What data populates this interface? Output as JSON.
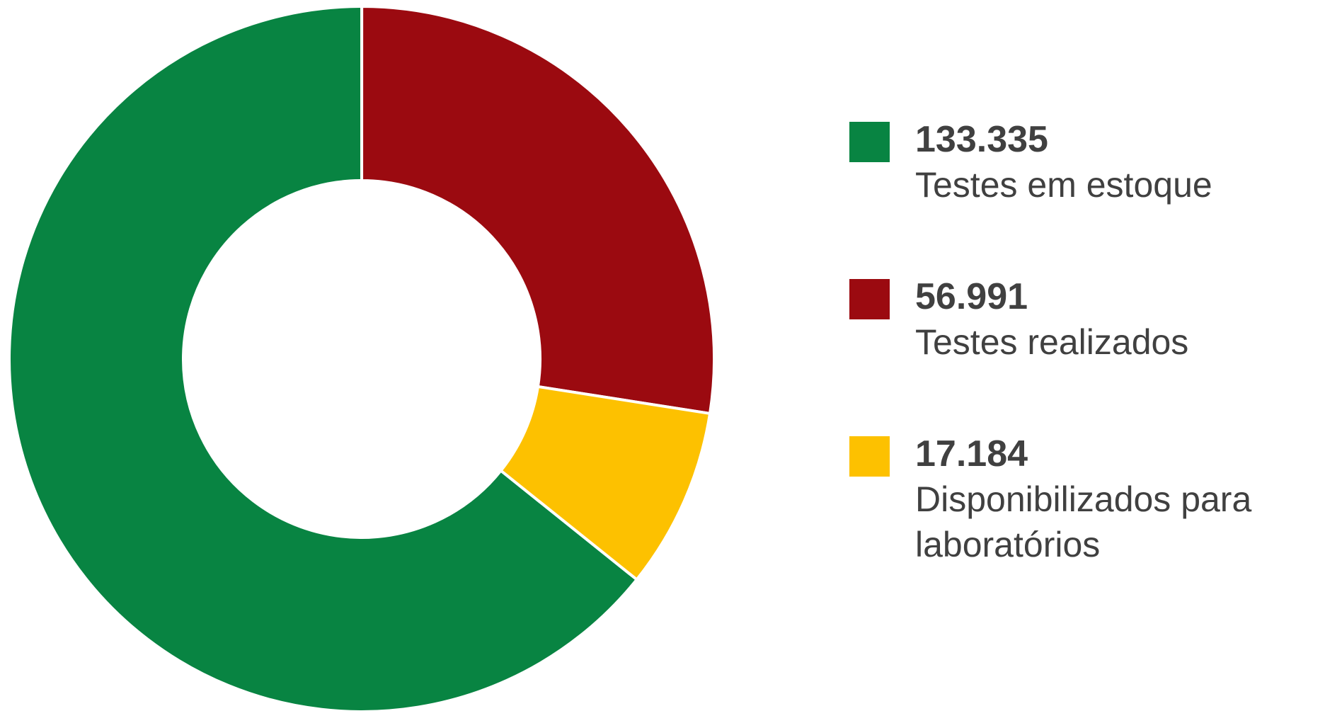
{
  "chart_data": {
    "type": "donut",
    "categories": [
      "Testes em estoque",
      "Testes realizados",
      "Disponibilizados para laboratórios"
    ],
    "values": [
      133335,
      56991,
      17184
    ],
    "value_labels": [
      "133.335",
      "56.991",
      "17.184"
    ],
    "colors": [
      "#088442",
      "#9b0a10",
      "#fdc100"
    ],
    "start_angle": 128.7,
    "direction": "clockwise",
    "legend": "right"
  }
}
